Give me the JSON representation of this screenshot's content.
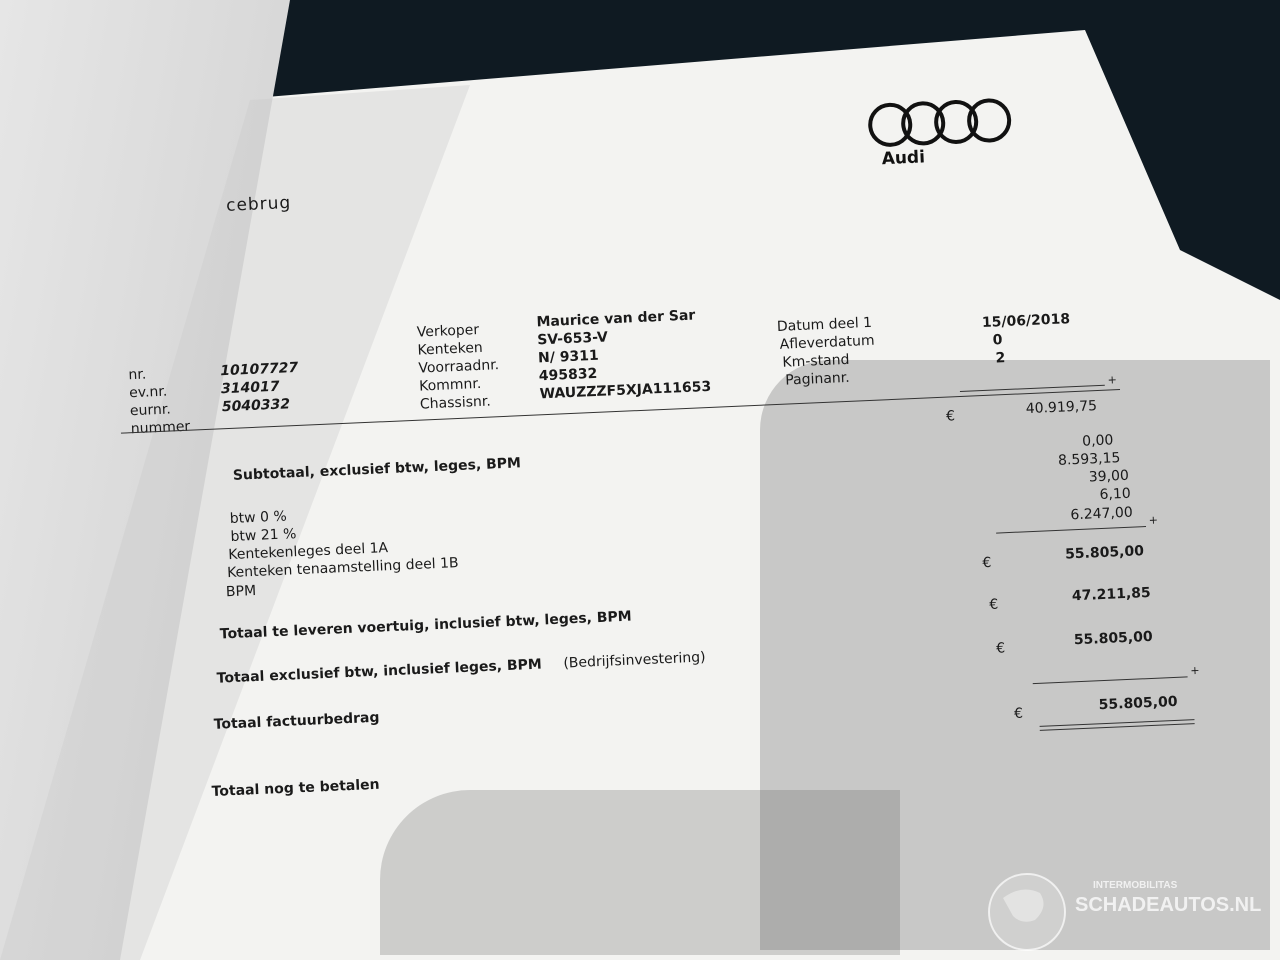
{
  "dealer_title_fragment": "cebrug",
  "brand": {
    "name": "Audi"
  },
  "left_fields": [
    {
      "label": "nr.",
      "value": "10107727"
    },
    {
      "label": "ev.nr.",
      "value": "314017"
    },
    {
      "label": "eurnr.",
      "value": "5040332"
    },
    {
      "label": "nummer",
      "value": ""
    }
  ],
  "middle_fields": [
    {
      "label": "Verkoper",
      "value": "Maurice van der Sar"
    },
    {
      "label": "Kenteken",
      "value": "SV-653-V"
    },
    {
      "label": "Voorraadnr.",
      "value": "N/ 9311"
    },
    {
      "label": "Kommnr.",
      "value": "495832"
    },
    {
      "label": "Chassisnr.",
      "value": "WAUZZZF5XJA111653"
    }
  ],
  "right_fields": [
    {
      "label": "Datum deel 1",
      "value": "15/06/2018"
    },
    {
      "label": "Afleverdatum",
      "value": "0"
    },
    {
      "label": "Km-stand",
      "value": "2"
    },
    {
      "label": "Paginanr.",
      "value": ""
    }
  ],
  "currency": "€",
  "plus": "+",
  "subtotal": {
    "label": "Subtotaal, exclusief btw, leges, BPM",
    "value": "40.919,75"
  },
  "lines": [
    {
      "label": "btw 0 %",
      "value": "0,00"
    },
    {
      "label": "btw 21 %",
      "value": "8.593,15"
    },
    {
      "label": "Kentekenleges deel 1A",
      "value": "39,00"
    },
    {
      "label": "Kenteken tenaamstelling deel 1B",
      "value": "6,10"
    },
    {
      "label": "BPM",
      "value": "6.247,00"
    }
  ],
  "totals": [
    {
      "label": "Totaal te leveren voertuig, inclusief btw, leges, BPM",
      "suffix": "",
      "value": "55.805,00"
    },
    {
      "label": "Totaal exclusief btw, inclusief leges, BPM",
      "suffix": "(Bedrijfsinvestering)",
      "value": "47.211,85"
    },
    {
      "label": "Totaal factuurbedrag",
      "suffix": "",
      "value": "55.805,00"
    },
    {
      "label": "Totaal nog te betalen",
      "suffix": "",
      "value": "55.805,00"
    }
  ],
  "watermark": {
    "top": "INTERMOBILITAS",
    "main": "SCHADEAUTOS.NL"
  }
}
